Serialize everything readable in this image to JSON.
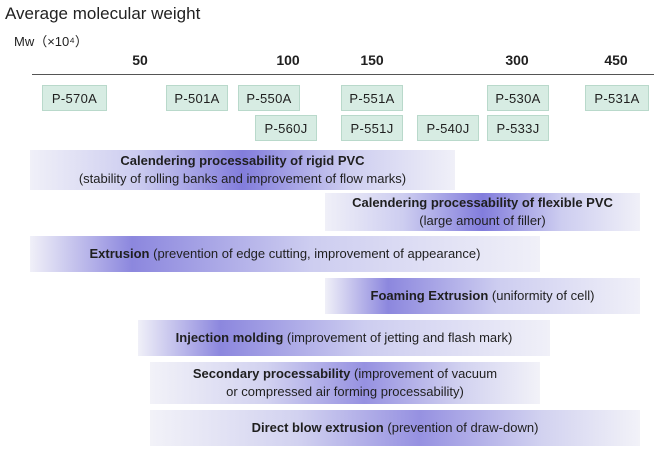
{
  "title": "Average molecular weight",
  "unit": "Mw（×10⁴）",
  "ticks": [
    "50",
    "100",
    "150",
    "300",
    "450"
  ],
  "grades_row1": [
    "P-570A",
    "P-501A",
    "P-550A",
    "P-551A",
    "P-530A",
    "P-531A"
  ],
  "grades_row2": [
    "P-560J",
    "P-551J",
    "P-540J",
    "P-533J"
  ],
  "bars": [
    {
      "title": "Calendering processability of rigid PVC",
      "detail": "(stability of rolling banks and improvement of flow marks)"
    },
    {
      "title": "Calendering processability of flexible PVC",
      "detail": "(large amount of filler)"
    },
    {
      "title": "Extrusion",
      "detail": "(prevention of edge cutting, improvement of appearance)"
    },
    {
      "title": "Foaming Extrusion",
      "detail": "(uniformity of cell)"
    },
    {
      "title": "Injection molding",
      "detail": "(improvement of jetting and flash mark)"
    },
    {
      "title": "Secondary processability",
      "detail": "(improvement of vacuum",
      "detail2": "or compressed air forming processability)"
    },
    {
      "title": "Direct blow extrusion",
      "detail": "(prevention of draw-down)"
    }
  ]
}
